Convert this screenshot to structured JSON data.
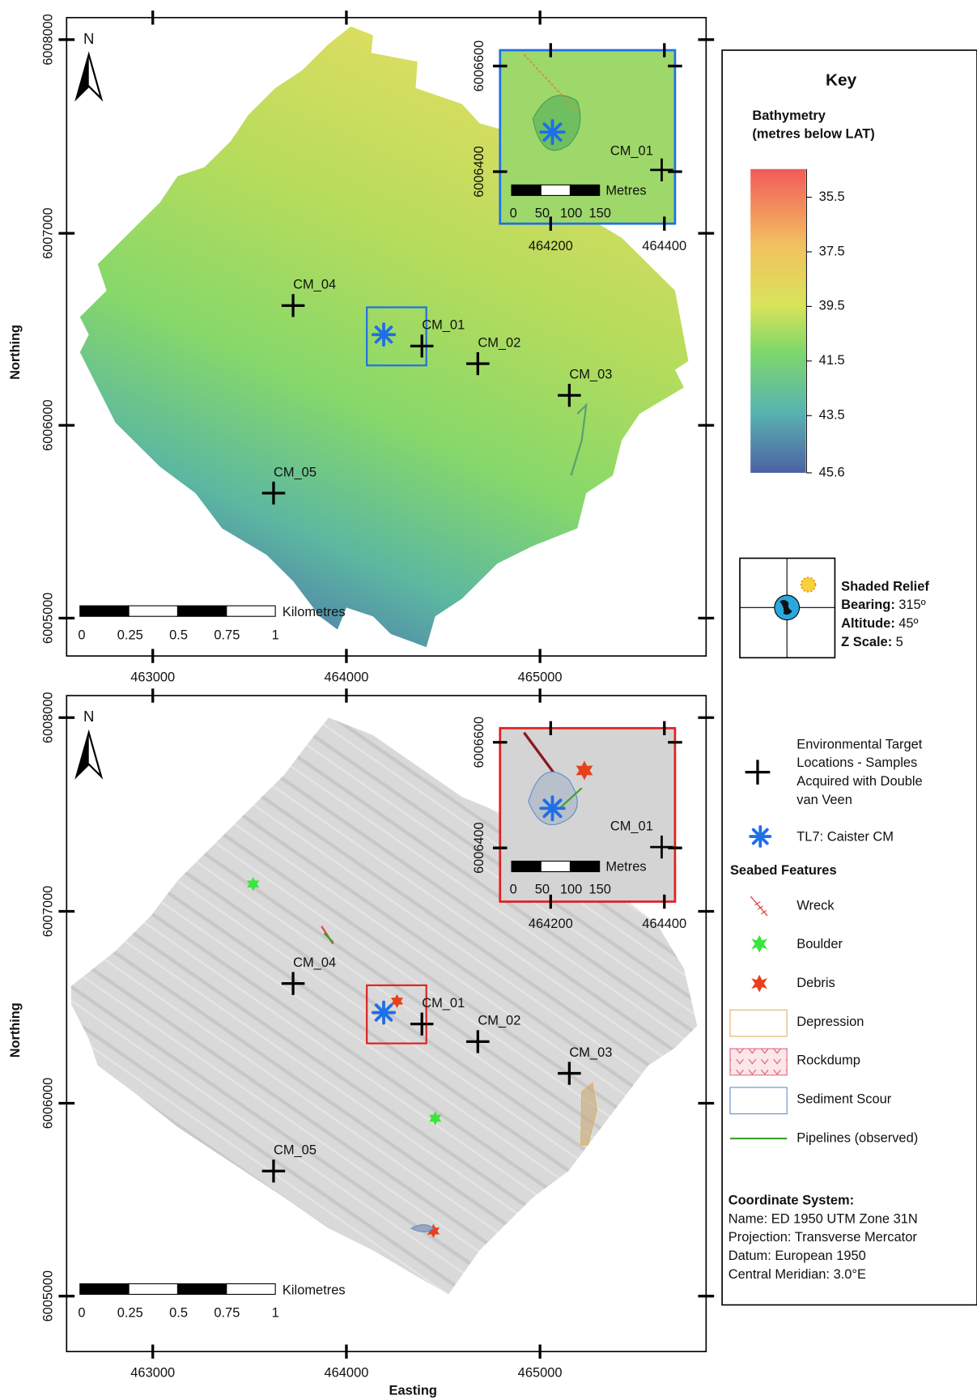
{
  "maps": [
    {
      "north": "N",
      "y_axis_title": "Northing",
      "yticks": [
        "6008000",
        "6007000",
        "6006000",
        "6005000"
      ],
      "xticks": [
        "463000",
        "464000",
        "465000"
      ],
      "targets": [
        "CM_04",
        "CM_01",
        "CM_02",
        "CM_03",
        "CM_05"
      ],
      "scale_bar": {
        "labels": [
          "0",
          "0.25",
          "0.5",
          "0.75",
          "1"
        ],
        "unit": "Kilometres"
      },
      "inset": {
        "yticks": [
          "6006600",
          "6006400"
        ],
        "xticks": [
          "464200",
          "464400"
        ],
        "target": "CM_01",
        "scale_bar": {
          "labels": [
            "0",
            "50",
            "100",
            "150"
          ],
          "unit": "Metres"
        }
      }
    },
    {
      "north": "N",
      "y_axis_title": "Northing",
      "x_axis_title": "Easting",
      "yticks": [
        "6008000",
        "6007000",
        "6006000",
        "6005000"
      ],
      "xticks": [
        "463000",
        "464000",
        "465000"
      ],
      "targets": [
        "CM_04",
        "CM_01",
        "CM_02",
        "CM_03",
        "CM_05"
      ],
      "scale_bar": {
        "labels": [
          "0",
          "0.25",
          "0.5",
          "0.75",
          "1"
        ],
        "unit": "Kilometres"
      },
      "inset": {
        "yticks": [
          "6006600",
          "6006400"
        ],
        "xticks": [
          "464200",
          "464400"
        ],
        "target": "CM_01",
        "scale_bar": {
          "labels": [
            "0",
            "50",
            "100",
            "150"
          ],
          "unit": "Metres"
        }
      }
    }
  ],
  "key": {
    "title": "Key",
    "bathymetry": {
      "title_lines": [
        "Bathymetry",
        "(metres below LAT)"
      ],
      "ticks": [
        "35.5",
        "37.5",
        "39.5",
        "41.5",
        "43.5",
        "45.6"
      ]
    },
    "shaded_relief": {
      "title": "Shaded Relief",
      "rows": [
        {
          "label": "Bearing:",
          "value": "315º"
        },
        {
          "label": "Altitude:",
          "value": "45º"
        },
        {
          "label": "Z Scale:",
          "value": "5"
        }
      ]
    },
    "targets_label_lines": [
      "Environmental Target",
      "Locations - Samples",
      "Acquired with Double",
      "van Veen"
    ],
    "tl7_label": "TL7: Caister CM",
    "seabed_features": {
      "title": "Seabed Features",
      "items": [
        "Wreck",
        "Boulder",
        "Debris",
        "Depression",
        "Rockdump",
        "Sediment Scour",
        "Pipelines (observed)"
      ]
    },
    "coordinate_system": {
      "title": "Coordinate System:",
      "lines": [
        "Name: ED 1950 UTM Zone 31N",
        "Projection: Transverse Mercator",
        "Datum: European 1950",
        "Central Meridian: 3.0°E"
      ]
    }
  }
}
